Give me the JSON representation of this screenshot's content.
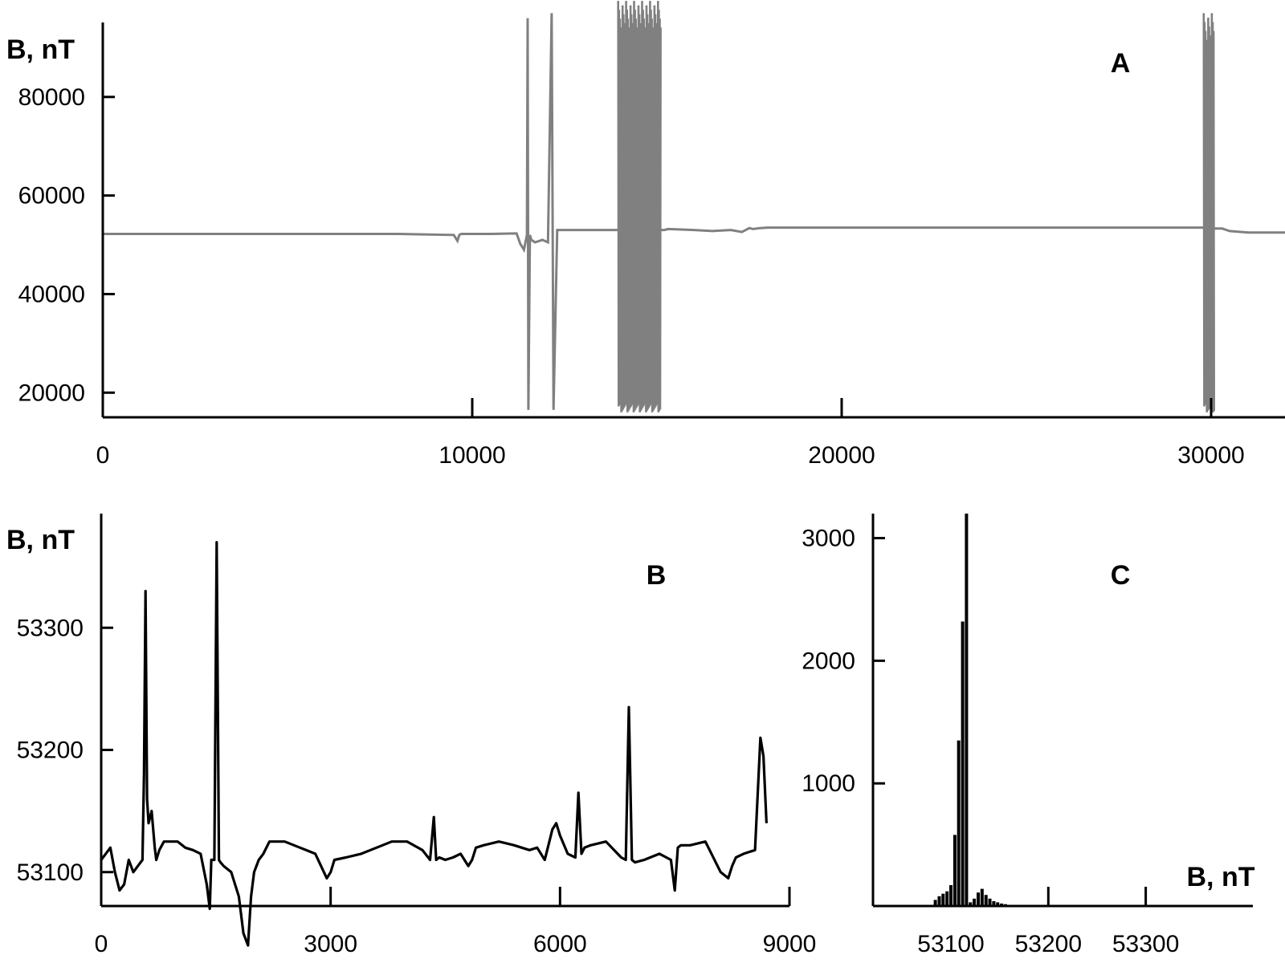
{
  "chart_data": [
    {
      "panel": "A",
      "type": "line",
      "label": "A",
      "ylabel": "B, nT",
      "xlabel": "",
      "xlim": [
        0,
        32000
      ],
      "ylim": [
        15000,
        100000
      ],
      "xticks": [
        0,
        10000,
        20000,
        30000
      ],
      "yticks": [
        20000,
        40000,
        60000,
        80000
      ],
      "xtick_labels": [
        "0",
        "10000",
        "20000",
        "30000"
      ],
      "ytick_labels": [
        "20000",
        "40000",
        "60000",
        "80000"
      ],
      "color": "#808080",
      "x": [
        0,
        2000,
        4000,
        6000,
        8000,
        9500,
        9600,
        9650,
        9700,
        10500,
        11200,
        11300,
        11400,
        11480,
        11500,
        11520,
        11560,
        11600,
        11700,
        11900,
        12050,
        12150,
        12200,
        12300,
        13000,
        13900,
        15200,
        15300,
        16000,
        16500,
        17000,
        17300,
        17500,
        17600,
        17800,
        18000,
        19000,
        22000,
        25000,
        28000,
        29800,
        30050,
        30100,
        30300,
        30500,
        31000,
        32000
      ],
      "y": [
        52200,
        52200,
        52200,
        52200,
        52200,
        52000,
        50800,
        52000,
        52200,
        52200,
        52300,
        50200,
        49000,
        52000,
        96000,
        16500,
        52000,
        51000,
        50500,
        51000,
        50500,
        97000,
        16500,
        53000,
        53000,
        53000,
        53000,
        53200,
        53000,
        52800,
        53000,
        52600,
        53400,
        53200,
        53400,
        53500,
        53500,
        53500,
        53500,
        53500,
        53500,
        53500,
        53300,
        53300,
        52800,
        52500,
        52500
      ],
      "bursts": [
        {
          "x_start": 13950,
          "x_end": 15100,
          "y_min": 16000,
          "y_max": 99500
        },
        {
          "x_start": 29800,
          "x_end": 30080,
          "y_min": 16000,
          "y_max": 97000
        }
      ]
    },
    {
      "panel": "B",
      "type": "line",
      "label": "B",
      "ylabel": "B, nT",
      "xlabel": "",
      "xlim": [
        0,
        9000
      ],
      "ylim": [
        53000,
        53400
      ],
      "xticks": [
        0,
        3000,
        6000,
        9000
      ],
      "yticks": [
        53100,
        53200,
        53300
      ],
      "xtick_labels": [
        "0",
        "3000",
        "6000",
        "9000"
      ],
      "ytick_labels": [
        "53100",
        "53200",
        "53300"
      ],
      "color": "#000000",
      "x": [
        0,
        60,
        120,
        180,
        240,
        300,
        360,
        420,
        480,
        540,
        560,
        580,
        600,
        620,
        660,
        700,
        720,
        760,
        820,
        900,
        1000,
        1100,
        1200,
        1300,
        1380,
        1420,
        1440,
        1480,
        1510,
        1540,
        1560,
        1600,
        1700,
        1800,
        1860,
        1920,
        1960,
        2000,
        2060,
        2120,
        2200,
        2300,
        2400,
        2600,
        2800,
        2950,
        3000,
        3050,
        3200,
        3400,
        3600,
        3800,
        4000,
        4200,
        4300,
        4350,
        4380,
        4420,
        4500,
        4600,
        4700,
        4800,
        4850,
        4900,
        5000,
        5200,
        5400,
        5500,
        5600,
        5700,
        5800,
        5900,
        5950,
        6000,
        6100,
        6200,
        6240,
        6280,
        6320,
        6400,
        6600,
        6800,
        6860,
        6900,
        6940,
        6980,
        7100,
        7300,
        7450,
        7500,
        7540,
        7580,
        7700,
        7900,
        8100,
        8200,
        8250,
        8300,
        8400,
        8550,
        8620,
        8660,
        8700
      ],
      "y": [
        53110,
        53115,
        53120,
        53100,
        53085,
        53090,
        53110,
        53100,
        53105,
        53110,
        53180,
        53330,
        53160,
        53140,
        53150,
        53120,
        53110,
        53118,
        53125,
        53125,
        53125,
        53120,
        53118,
        53115,
        53090,
        53070,
        53110,
        53110,
        53370,
        53110,
        53108,
        53105,
        53100,
        53080,
        53050,
        53040,
        53080,
        53100,
        53110,
        53115,
        53125,
        53125,
        53125,
        53120,
        53115,
        53095,
        53100,
        53110,
        53112,
        53115,
        53120,
        53125,
        53125,
        53118,
        53110,
        53145,
        53110,
        53112,
        53110,
        53112,
        53115,
        53105,
        53110,
        53120,
        53122,
        53125,
        53122,
        53120,
        53118,
        53120,
        53110,
        53135,
        53140,
        53130,
        53115,
        53112,
        53165,
        53115,
        53120,
        53122,
        53125,
        53112,
        53110,
        53235,
        53110,
        53108,
        53110,
        53115,
        53110,
        53085,
        53120,
        53122,
        53122,
        53125,
        53100,
        53095,
        53105,
        53112,
        53115,
        53118,
        53210,
        53195,
        53140
      ]
    },
    {
      "panel": "C",
      "type": "bar",
      "label": "C",
      "ylabel": "",
      "xlabel": "B, nT",
      "xlim": [
        53020,
        53410
      ],
      "ylim": [
        0,
        3200
      ],
      "xticks": [
        53100,
        53200,
        53300
      ],
      "yticks": [
        1000,
        2000,
        3000
      ],
      "xtick_labels": [
        "53100",
        "53200",
        "53300"
      ],
      "ytick_labels": [
        "1000",
        "2000",
        "3000"
      ],
      "color": "#000000",
      "x": [
        53040,
        53060,
        53080,
        53084,
        53088,
        53092,
        53096,
        53100,
        53104,
        53108,
        53112,
        53116,
        53120,
        53124,
        53128,
        53132,
        53136,
        53140,
        53144,
        53148,
        53152,
        53156,
        53160,
        53200,
        53250,
        53300,
        53350,
        53400
      ],
      "y": [
        5,
        5,
        10,
        50,
        80,
        100,
        120,
        170,
        580,
        1350,
        2320,
        3200,
        30,
        60,
        110,
        140,
        90,
        60,
        40,
        30,
        20,
        15,
        10,
        8,
        6,
        5,
        5,
        5
      ]
    }
  ]
}
